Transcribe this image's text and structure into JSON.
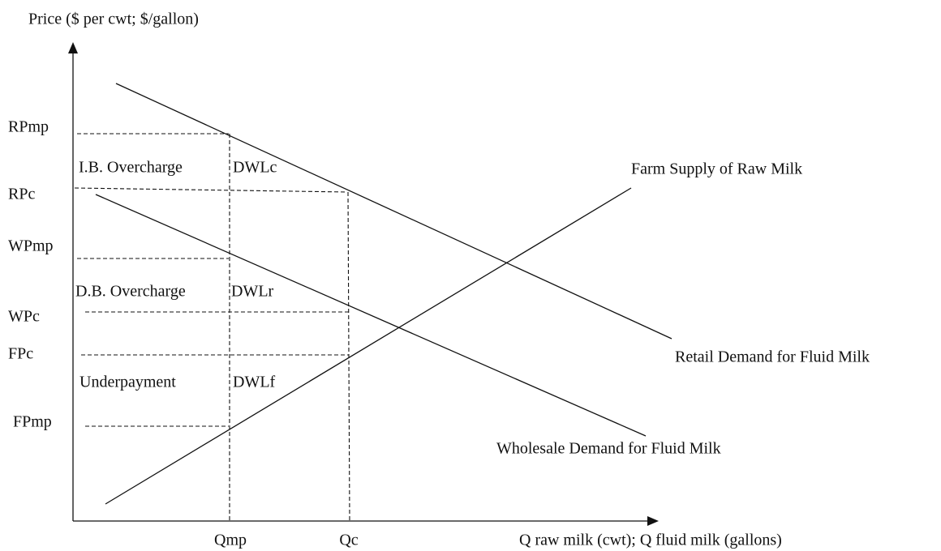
{
  "axes": {
    "y_label": "Price ($ per cwt; $/gallon)",
    "x_label": "Q raw milk (cwt); Q fluid milk (gallons)"
  },
  "price_labels": [
    "RPmp",
    "RPc",
    "WPmp",
    "WPc",
    "FPc",
    "FPmp"
  ],
  "quantity_labels": [
    "Qmp",
    "Qc"
  ],
  "regions": [
    "I.B. Overcharge",
    "DWLc",
    "D.B. Overcharge",
    "DWLr",
    "Underpayment",
    "DWLf"
  ],
  "curves": [
    "Farm Supply of Raw Milk",
    "Retail Demand for Fluid Milk",
    "Wholesale Demand for Fluid Milk"
  ]
}
